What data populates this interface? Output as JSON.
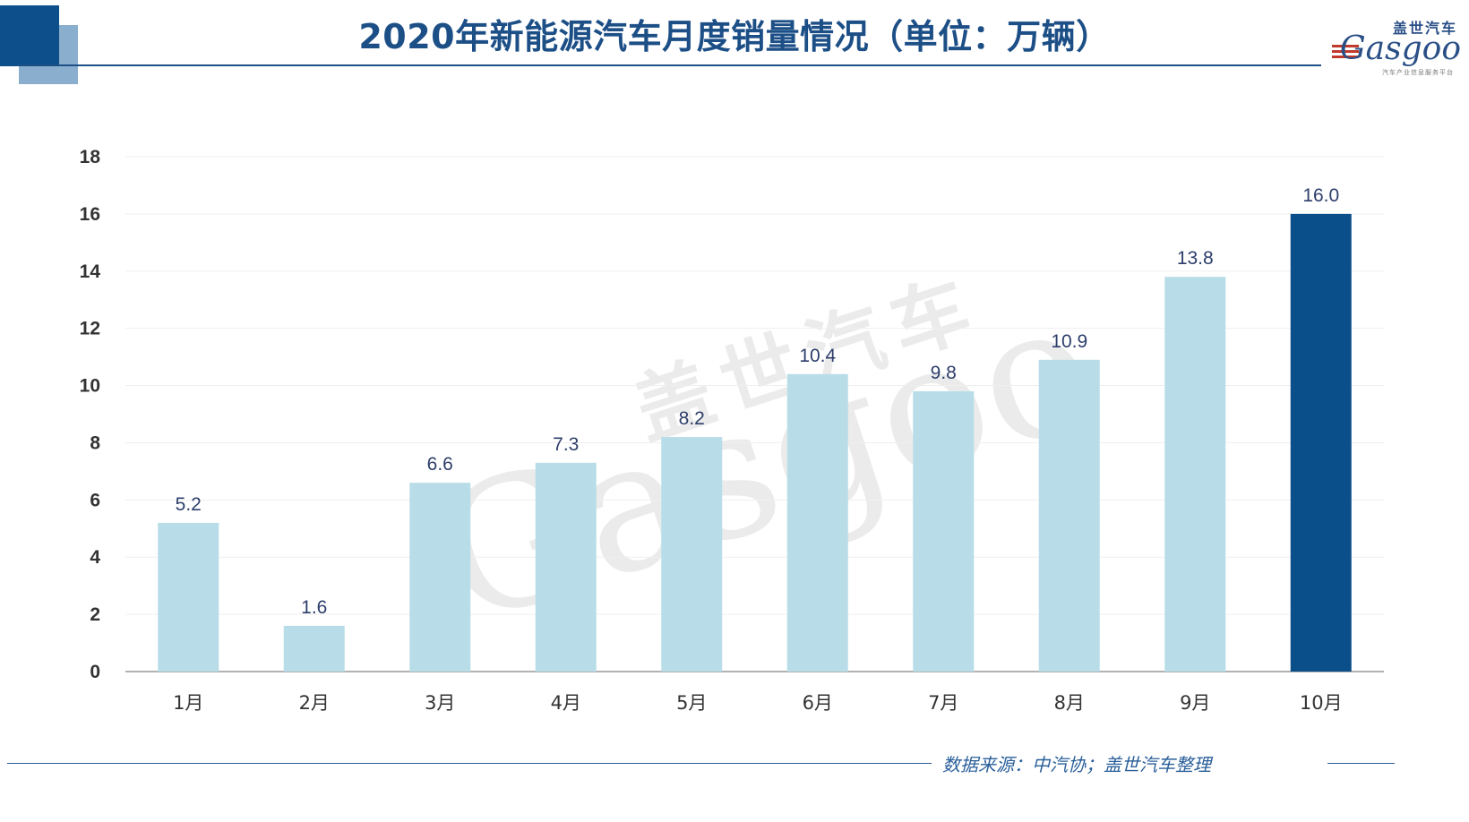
{
  "header": {
    "title": "2020年新能源汽车月度销量情况（单位：万辆）",
    "logo_cn": "盖世汽车",
    "logo_en": "Gasgoo",
    "logo_sub": "汽车产业信息服务平台"
  },
  "watermark": {
    "cn": "盖世汽车",
    "en": "Gasgoo"
  },
  "footer": {
    "source": "数据来源：中汽协；盖世汽车整理"
  },
  "colors": {
    "bar": "#b8dde8",
    "highlight": "#0b4f8a",
    "title": "#1d4f87",
    "label": "#2d3e6b"
  },
  "chart_data": {
    "type": "bar",
    "title": "2020年新能源汽车月度销量情况（单位：万辆）",
    "categories": [
      "1月",
      "2月",
      "3月",
      "4月",
      "5月",
      "6月",
      "7月",
      "8月",
      "9月",
      "10月"
    ],
    "values": [
      5.2,
      1.6,
      6.6,
      7.3,
      8.2,
      10.4,
      9.8,
      10.9,
      13.8,
      16.0
    ],
    "value_labels": [
      "5.2",
      "1.6",
      "6.6",
      "7.3",
      "8.2",
      "10.4",
      "9.8",
      "10.9",
      "13.8",
      "16.0"
    ],
    "highlight_index": 9,
    "ylim": [
      0,
      18
    ],
    "yticks": [
      0,
      2,
      4,
      6,
      8,
      10,
      12,
      14,
      16,
      18
    ],
    "xlabel": "",
    "ylabel": "",
    "grid": true
  }
}
